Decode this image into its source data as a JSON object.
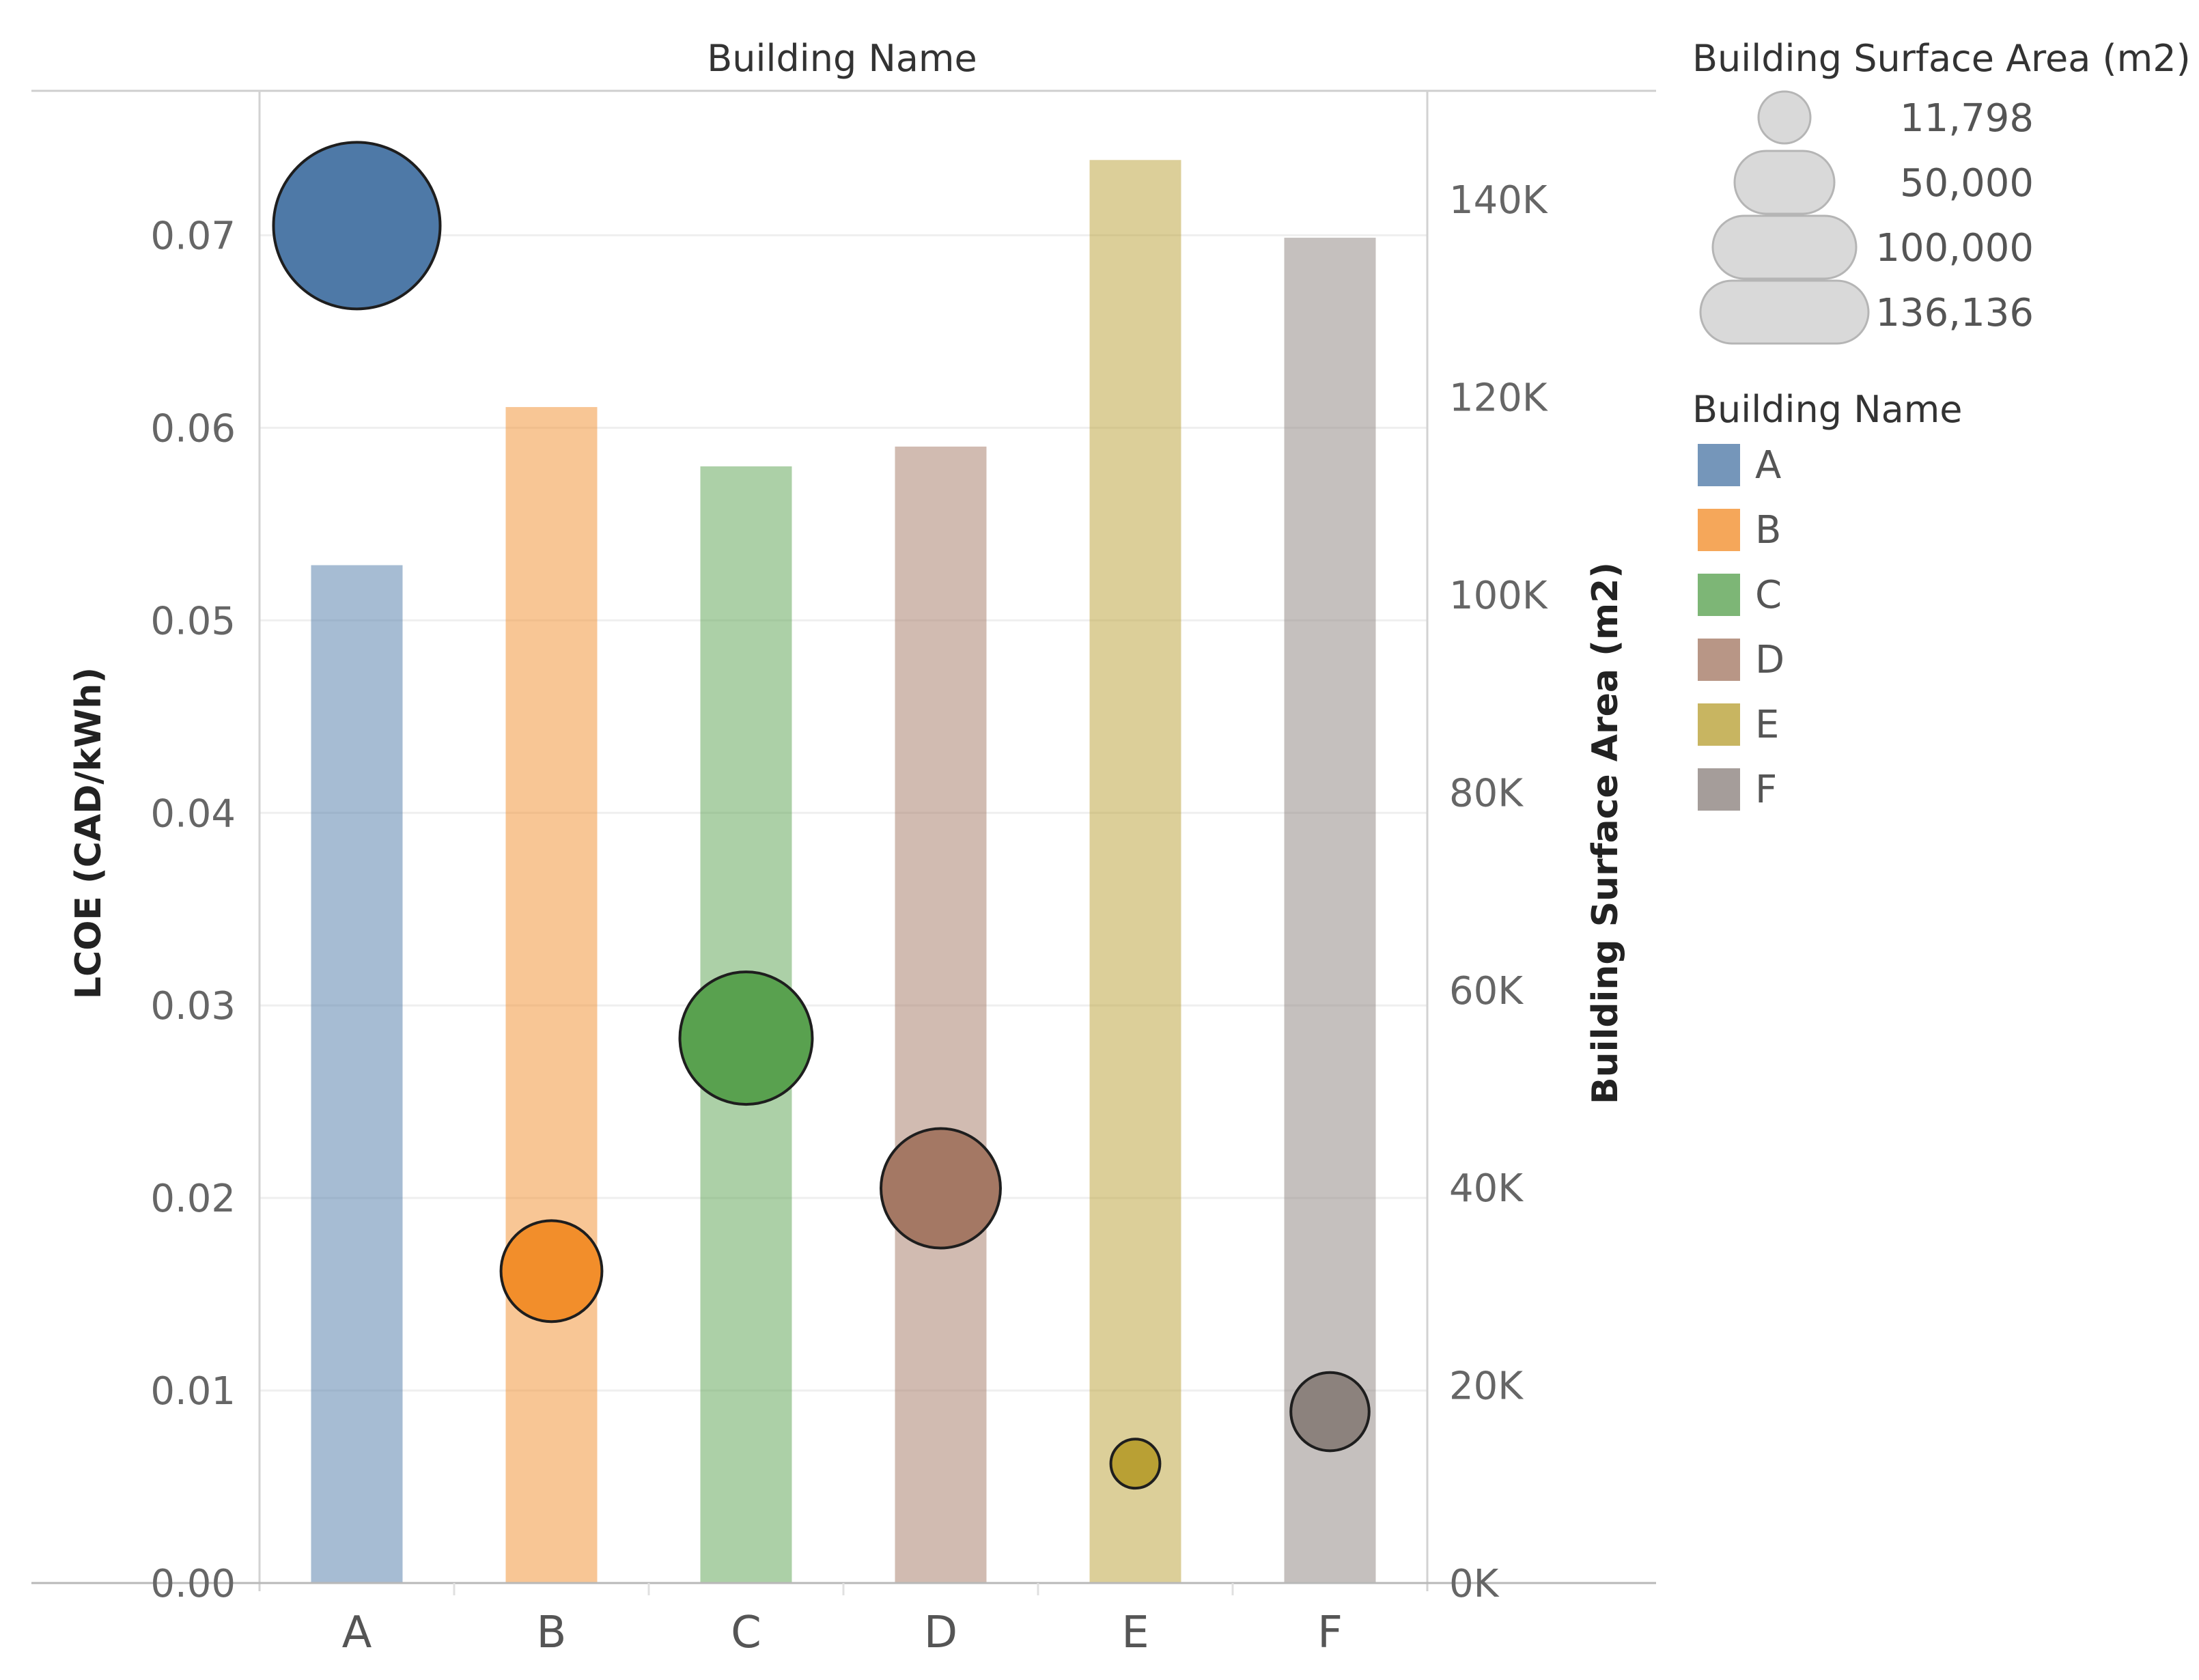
{
  "chart_data": {
    "type": "bar",
    "header": "Building Name",
    "categories": [
      "A",
      "B",
      "C",
      "D",
      "E",
      "F"
    ],
    "colors": [
      "#4e79a7",
      "#f28e2b",
      "#59a14f",
      "#a47864",
      "#b9a034",
      "#8c827d"
    ],
    "bar_series": {
      "name": "Building Surface Area (m2)",
      "axis": "right",
      "values": [
        103000,
        119000,
        113000,
        115000,
        144000,
        136136
      ]
    },
    "circle_series": {
      "name": "LCOE (CAD/kWh)",
      "axis": "left",
      "values": [
        0.0705,
        0.0162,
        0.0283,
        0.0205,
        0.0062,
        0.0089
      ],
      "size_values": [
        136136,
        50000,
        86000,
        70000,
        11798,
        30000
      ]
    },
    "left_axis": {
      "title": "LCOE (CAD/kWh)",
      "range": [
        0,
        0.0775
      ],
      "ticks": [
        0,
        0.01,
        0.02,
        0.03,
        0.04,
        0.05,
        0.06,
        0.07
      ],
      "tick_labels": [
        "0.00",
        "0.01",
        "0.02",
        "0.03",
        "0.04",
        "0.05",
        "0.06",
        "0.07"
      ]
    },
    "right_axis": {
      "title": "Building Surface Area (m2)",
      "range": [
        0,
        151000
      ],
      "ticks": [
        0,
        20000,
        40000,
        60000,
        80000,
        100000,
        120000,
        140000
      ],
      "tick_labels": [
        "0K",
        "20K",
        "40K",
        "60K",
        "80K",
        "100K",
        "120K",
        "140K"
      ]
    },
    "legend_size": {
      "title": "Building Surface Area (m2)",
      "values": [
        11798,
        50000,
        100000,
        136136
      ],
      "labels": [
        "11,798",
        "50,000",
        "100,000",
        "136,136"
      ]
    },
    "legend_color": {
      "title": "Building Name",
      "items": [
        "A",
        "B",
        "C",
        "D",
        "E",
        "F"
      ]
    },
    "grid": true
  }
}
